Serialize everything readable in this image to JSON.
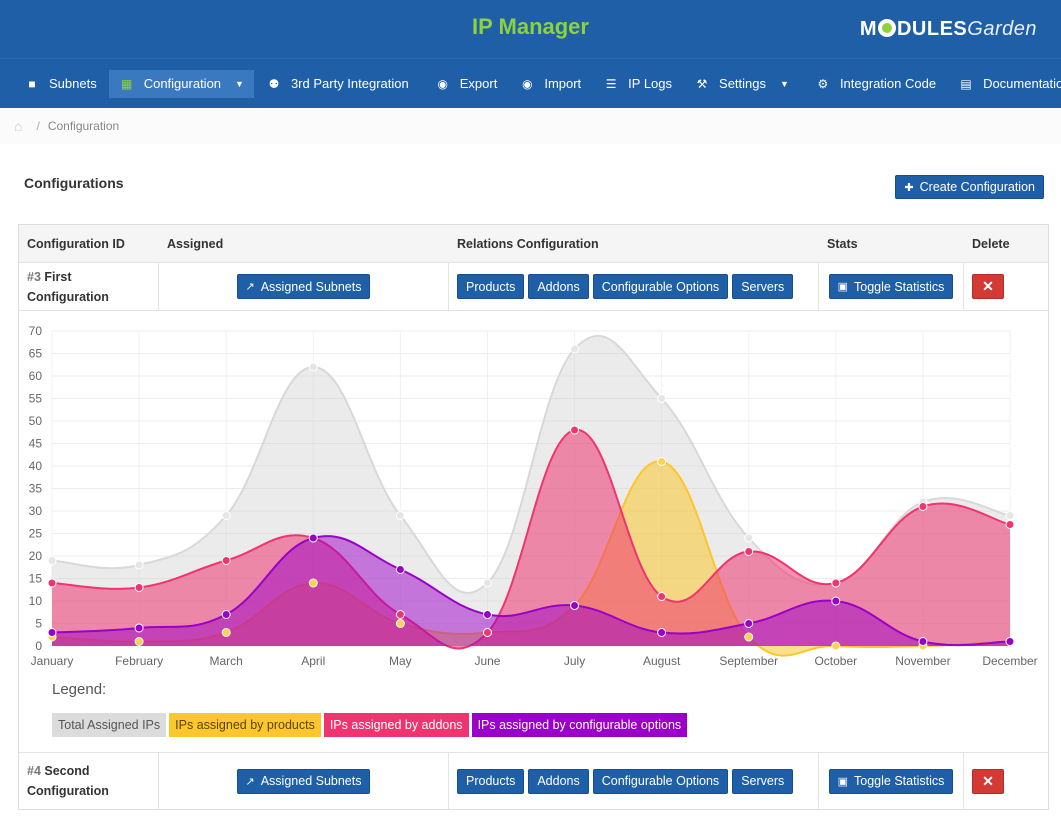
{
  "header": {
    "title": "IP Manager",
    "brand_main": "M",
    "brand_rest": "DULES",
    "brand_garden": "Garden"
  },
  "nav": [
    {
      "label": "Subnets",
      "icon": "briefcase-icon"
    },
    {
      "label": "Configuration",
      "icon": "grid-icon",
      "active": true,
      "dropdown": true
    },
    {
      "label": "3rd Party Integration",
      "icon": "users-icon"
    },
    {
      "label": "Export",
      "icon": "export-icon"
    },
    {
      "label": "Import",
      "icon": "import-icon"
    },
    {
      "label": "IP Logs",
      "icon": "list-icon"
    },
    {
      "label": "Settings",
      "icon": "wrench-icon",
      "dropdown": true
    },
    {
      "label": "Integration Code",
      "icon": "gears-icon"
    },
    {
      "label": "Documentation",
      "icon": "book-icon"
    }
  ],
  "breadcrumb": {
    "current": "Configuration",
    "separator": "/"
  },
  "page": {
    "title": "Configurations",
    "create_button": "Create Configuration"
  },
  "table": {
    "headers": [
      "Configuration ID",
      "Assigned",
      "Relations Configuration",
      "Stats",
      "Delete"
    ],
    "rows": [
      {
        "num": "#3",
        "name": "First Configuration"
      },
      {
        "num": "#4",
        "name": "Second Configuration"
      }
    ],
    "buttons": {
      "assigned": "Assigned Subnets",
      "products": "Products",
      "addons": "Addons",
      "options": "Configurable Options",
      "servers": "Servers",
      "toggle": "Toggle Statistics",
      "delete": "✕"
    }
  },
  "legend": {
    "title": "Legend:",
    "items": [
      {
        "label": "Total Assigned IPs",
        "color": "#dcdcdc"
      },
      {
        "label": "IPs assigned by products",
        "color": "#fcc62e"
      },
      {
        "label": "IPs assigned by addons",
        "color": "#ef3470"
      },
      {
        "label": "IPs assigned by configurable options",
        "color": "#9b00c8"
      }
    ]
  },
  "chart_data": {
    "type": "area",
    "categories": [
      "January",
      "February",
      "March",
      "April",
      "May",
      "June",
      "July",
      "August",
      "September",
      "October",
      "November",
      "December"
    ],
    "ylim": [
      0,
      70
    ],
    "yticks": [
      0,
      5,
      10,
      15,
      20,
      25,
      30,
      35,
      40,
      45,
      50,
      55,
      60,
      65,
      70
    ],
    "grid": true,
    "series": [
      {
        "name": "Total Assigned IPs",
        "color": "#dcdcdc",
        "values": [
          19,
          18,
          29,
          62,
          29,
          14,
          66,
          55,
          24,
          14,
          32,
          29
        ]
      },
      {
        "name": "IPs assigned by products",
        "color": "#fcc62e",
        "values": [
          2,
          1,
          3,
          14,
          5,
          3,
          9,
          41,
          2,
          0,
          0,
          1
        ]
      },
      {
        "name": "IPs assigned by addons",
        "color": "#ef3470",
        "values": [
          14,
          13,
          19,
          24,
          7,
          3,
          48,
          11,
          21,
          14,
          31,
          27
        ]
      },
      {
        "name": "IPs assigned by configurable options",
        "color": "#9b00c8",
        "values": [
          3,
          4,
          7,
          24,
          17,
          7,
          9,
          3,
          5,
          10,
          1,
          1
        ]
      }
    ]
  }
}
